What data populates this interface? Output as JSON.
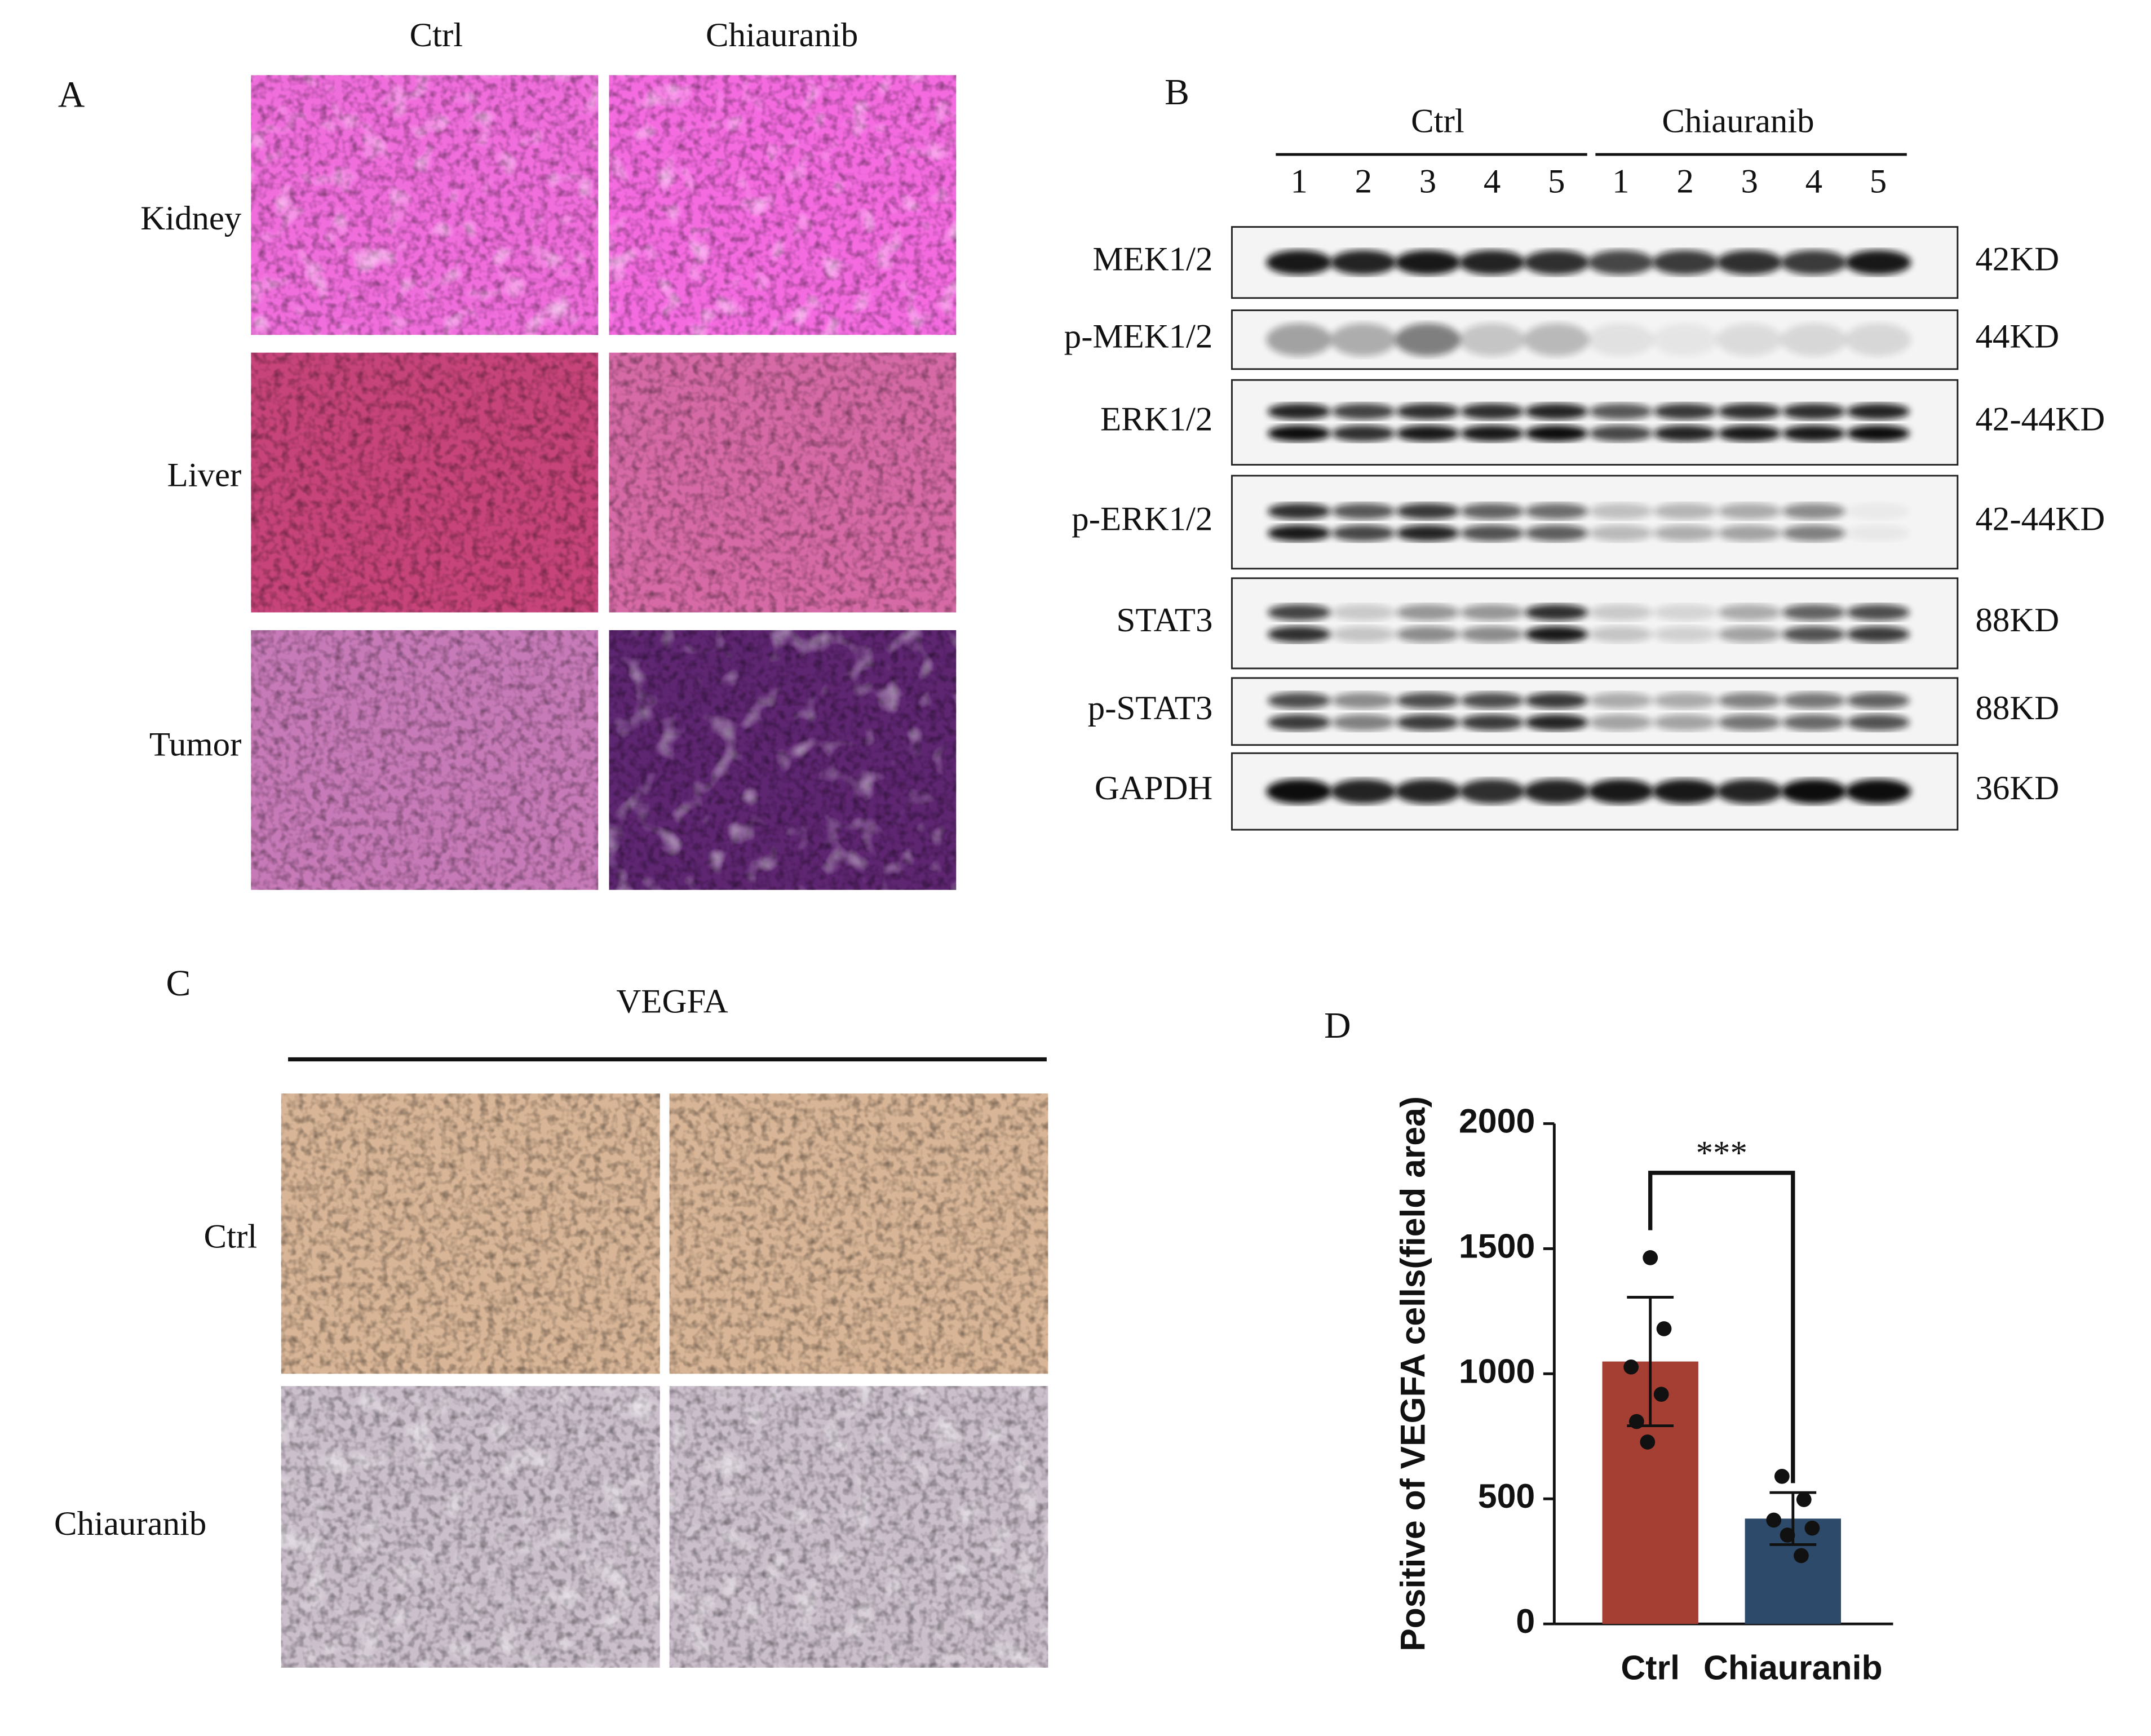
{
  "panels": {
    "A": {
      "label": "A",
      "columns": [
        "Ctrl",
        "Chiauranib"
      ],
      "rows": [
        "Kidney",
        "Liver",
        "Tumor"
      ]
    },
    "B": {
      "label": "B",
      "groups": [
        "Ctrl",
        "Chiauranib"
      ],
      "lanes": [
        [
          1,
          2,
          3,
          4,
          5
        ],
        [
          1,
          2,
          3,
          4,
          5
        ]
      ],
      "proteins": [
        {
          "name": "MEK1/2",
          "size": "42KD"
        },
        {
          "name": "p-MEK1/2",
          "size": "44KD"
        },
        {
          "name": "ERK1/2",
          "size": "42-44KD"
        },
        {
          "name": "p-ERK1/2",
          "size": "42-44KD"
        },
        {
          "name": "STAT3",
          "size": "88KD"
        },
        {
          "name": "p-STAT3",
          "size": "88KD"
        },
        {
          "name": "GAPDH",
          "size": "36KD"
        }
      ]
    },
    "C": {
      "label": "C",
      "title": "VEGFA",
      "rows": [
        "Ctrl",
        "Chiauranib"
      ]
    },
    "D": {
      "label": "D"
    }
  },
  "chart_data": {
    "type": "bar",
    "y_label": "Positive of VEGFA cells(field area)",
    "annotation": "***",
    "categories": [
      "Ctrl",
      "Chiauranib"
    ],
    "values": [
      1049,
      421
    ],
    "errors": [
      257,
      104
    ],
    "colors": [
      "#a63f33",
      "#2e4a6b"
    ],
    "points": [
      [
        1464,
        1180,
        1027,
        918,
        809,
        727
      ],
      [
        590,
        497,
        415,
        383,
        355,
        273
      ]
    ],
    "ylim": [
      0,
      2000
    ],
    "yticks": [
      0,
      500,
      1000,
      1500,
      2000
    ]
  }
}
